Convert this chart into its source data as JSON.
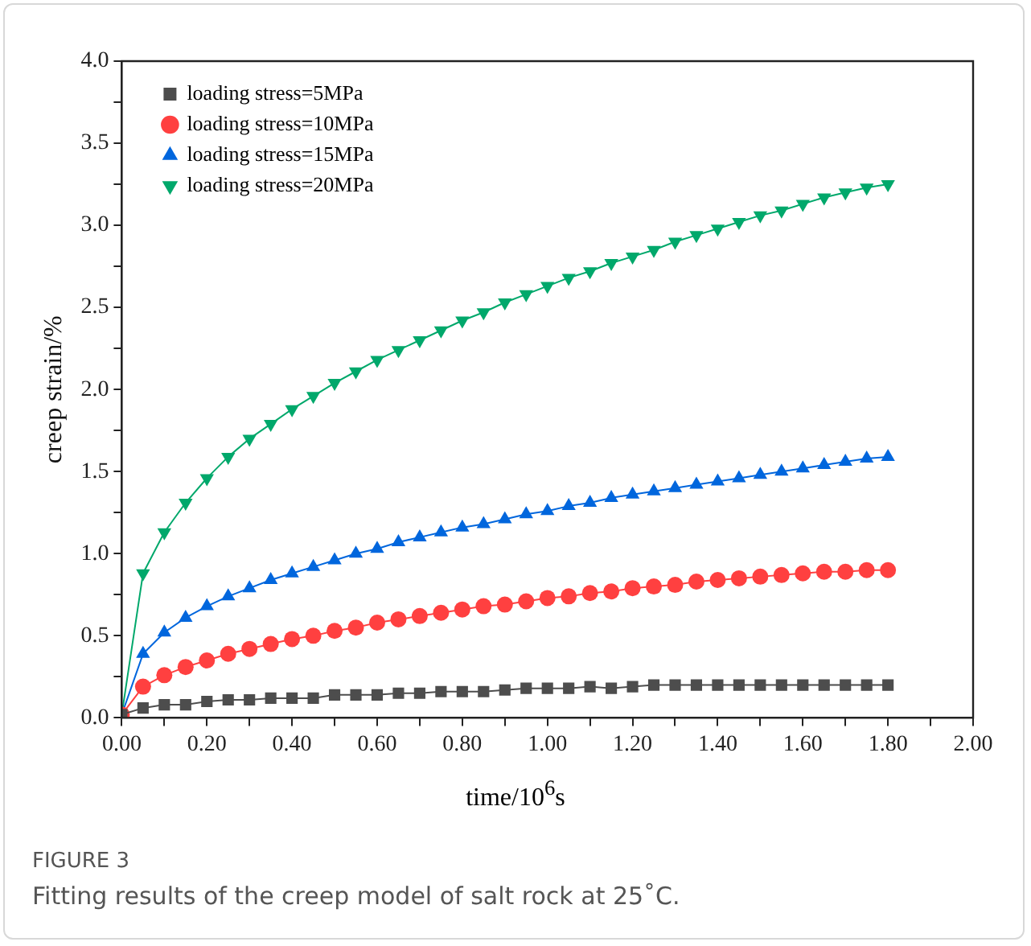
{
  "chart_data": {
    "type": "line",
    "xlabel": "time/10$^{6}$s",
    "ylabel": "creep strain/%",
    "annotations": [
      "FIGURE 3",
      "Fitting results of the creep model of salt rock at 25˚C."
    ],
    "x": [
      0,
      0.05,
      0.1,
      0.15,
      0.2,
      0.25,
      0.3,
      0.35,
      0.4,
      0.45,
      0.5,
      0.55,
      0.6,
      0.65,
      0.7,
      0.75,
      0.8,
      0.85,
      0.9,
      0.95,
      1.0,
      1.05,
      1.1,
      1.15,
      1.2,
      1.25,
      1.3,
      1.35,
      1.4,
      1.45,
      1.5,
      1.55,
      1.6,
      1.65,
      1.7,
      1.75,
      1.8
    ],
    "series": [
      {
        "name": "loading stress=5MPa",
        "color": "#4d4d4d",
        "marker": "square",
        "values": [
          0.02,
          0.06,
          0.08,
          0.08,
          0.1,
          0.11,
          0.11,
          0.12,
          0.12,
          0.12,
          0.14,
          0.14,
          0.14,
          0.15,
          0.15,
          0.16,
          0.16,
          0.16,
          0.17,
          0.18,
          0.18,
          0.18,
          0.19,
          0.18,
          0.19,
          0.2,
          0.2,
          0.2,
          0.2,
          0.2,
          0.2,
          0.2,
          0.2,
          0.2,
          0.2,
          0.2,
          0.2
        ]
      },
      {
        "name": "loading stress=10MPa",
        "color": "#ff4040",
        "marker": "circle",
        "values": [
          0.02,
          0.19,
          0.26,
          0.31,
          0.35,
          0.39,
          0.42,
          0.45,
          0.48,
          0.5,
          0.53,
          0.55,
          0.58,
          0.6,
          0.62,
          0.64,
          0.66,
          0.68,
          0.69,
          0.71,
          0.73,
          0.74,
          0.76,
          0.77,
          0.79,
          0.8,
          0.81,
          0.83,
          0.84,
          0.85,
          0.86,
          0.87,
          0.88,
          0.89,
          0.89,
          0.9,
          0.9
        ]
      },
      {
        "name": "loading stress=15MPa",
        "color": "#0066dd",
        "marker": "triangle",
        "values": [
          0.02,
          0.39,
          0.52,
          0.61,
          0.68,
          0.74,
          0.79,
          0.84,
          0.88,
          0.92,
          0.96,
          1.0,
          1.03,
          1.07,
          1.1,
          1.13,
          1.16,
          1.18,
          1.21,
          1.24,
          1.26,
          1.29,
          1.31,
          1.34,
          1.36,
          1.38,
          1.4,
          1.42,
          1.44,
          1.46,
          1.48,
          1.5,
          1.52,
          1.54,
          1.56,
          1.58,
          1.59
        ]
      },
      {
        "name": "loading stress=20MPa",
        "color": "#00a86b",
        "marker": "triangle-down",
        "values": [
          0.02,
          0.88,
          1.13,
          1.31,
          1.46,
          1.59,
          1.7,
          1.79,
          1.88,
          1.96,
          2.04,
          2.11,
          2.18,
          2.24,
          2.3,
          2.36,
          2.42,
          2.47,
          2.53,
          2.58,
          2.63,
          2.68,
          2.72,
          2.77,
          2.81,
          2.85,
          2.9,
          2.94,
          2.98,
          3.02,
          3.06,
          3.09,
          3.13,
          3.17,
          3.2,
          3.23,
          3.25
        ]
      }
    ],
    "xlim": [
      0,
      2
    ],
    "xticks": [
      {
        "value": 0,
        "label": "0.00"
      },
      {
        "value": 0.1,
        "label": null
      },
      {
        "value": 0.2,
        "label": "0.20"
      },
      {
        "value": 0.3,
        "label": null
      },
      {
        "value": 0.4,
        "label": "0.40"
      },
      {
        "value": 0.5,
        "label": null
      },
      {
        "value": 0.6,
        "label": "0.60"
      },
      {
        "value": 0.7,
        "label": null
      },
      {
        "value": 0.8,
        "label": "0.80"
      },
      {
        "value": 0.9,
        "label": null
      },
      {
        "value": 1,
        "label": "1.00"
      },
      {
        "value": 1.1,
        "label": null
      },
      {
        "value": 1.2,
        "label": "1.20"
      },
      {
        "value": 1.3,
        "label": null
      },
      {
        "value": 1.4,
        "label": "1.40"
      },
      {
        "value": 1.5,
        "label": null
      },
      {
        "value": 1.6,
        "label": "1.60"
      },
      {
        "value": 1.7,
        "label": null
      },
      {
        "value": 1.8,
        "label": "1.80"
      },
      {
        "value": 1.9,
        "label": null
      },
      {
        "value": 2,
        "label": "2.00"
      }
    ],
    "ylim": [
      0,
      4
    ],
    "yticks": [
      {
        "value": 0,
        "label": "0.0"
      },
      {
        "value": 0.25,
        "label": null
      },
      {
        "value": 0.5,
        "label": "0.5"
      },
      {
        "value": 0.75,
        "label": null
      },
      {
        "value": 1,
        "label": "1.0"
      },
      {
        "value": 1.25,
        "label": null
      },
      {
        "value": 1.5,
        "label": "1.5"
      },
      {
        "value": 1.75,
        "label": null
      },
      {
        "value": 2,
        "label": "2.0"
      },
      {
        "value": 2.25,
        "label": null
      },
      {
        "value": 2.5,
        "label": "2.5"
      },
      {
        "value": 2.75,
        "label": null
      },
      {
        "value": 3,
        "label": "3.0"
      },
      {
        "value": 3.25,
        "label": null
      },
      {
        "value": 3.5,
        "label": "3.5"
      },
      {
        "value": 3.75,
        "label": null
      },
      {
        "value": 4,
        "label": "4.0"
      }
    ],
    "legend": "top left",
    "line_style": "solid"
  }
}
